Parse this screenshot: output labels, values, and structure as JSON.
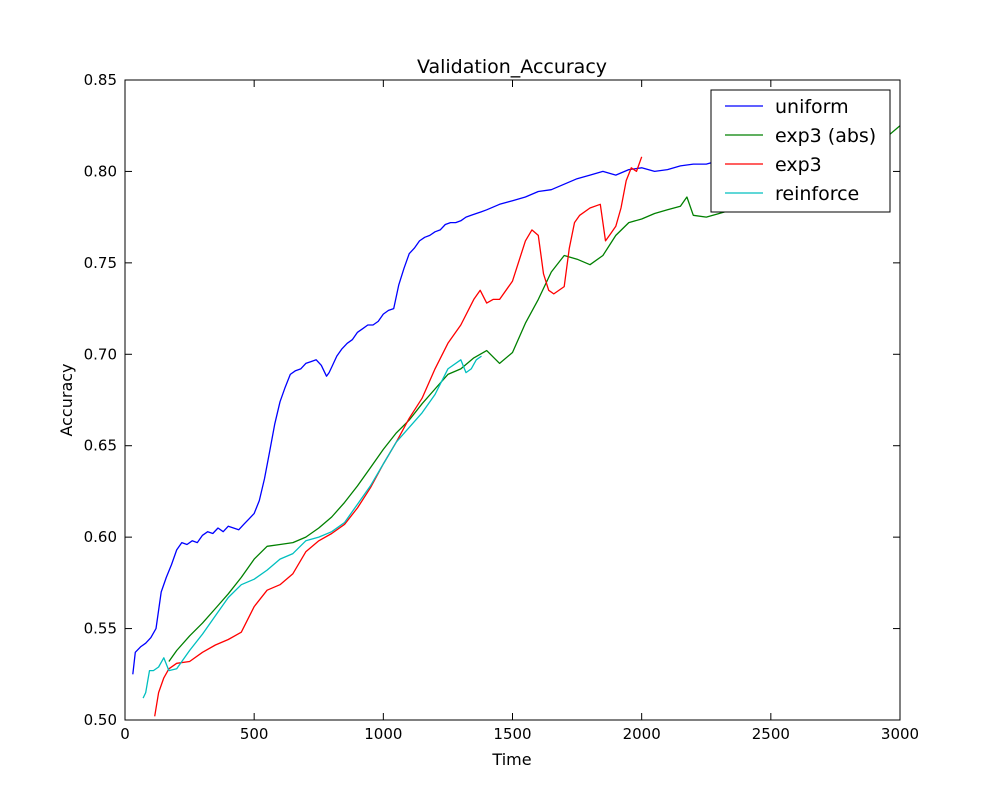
{
  "chart_data": {
    "type": "line",
    "title": "Validation_Accuracy",
    "xlabel": "Time",
    "ylabel": "Accuracy",
    "xlim": [
      0,
      3000
    ],
    "ylim": [
      0.5,
      0.85
    ],
    "xticks": [
      0,
      500,
      1000,
      1500,
      2000,
      2500,
      3000
    ],
    "yticks": [
      0.5,
      0.55,
      0.6,
      0.65,
      0.7,
      0.75,
      0.8,
      0.85
    ],
    "xtick_labels": [
      "0",
      "500",
      "1000",
      "1500",
      "2000",
      "2500",
      "3000"
    ],
    "ytick_labels": [
      "0.50",
      "0.55",
      "0.60",
      "0.65",
      "0.70",
      "0.75",
      "0.80",
      "0.85"
    ],
    "grid": false,
    "legend_position": "top-right",
    "series": [
      {
        "name": "uniform",
        "color": "#0000ff",
        "x": [
          30,
          40,
          60,
          80,
          100,
          120,
          140,
          160,
          180,
          200,
          220,
          240,
          260,
          280,
          300,
          320,
          340,
          360,
          380,
          400,
          420,
          440,
          460,
          480,
          500,
          520,
          540,
          560,
          580,
          600,
          620,
          640,
          660,
          680,
          700,
          720,
          740,
          760,
          780,
          790,
          800,
          820,
          840,
          860,
          880,
          900,
          920,
          940,
          960,
          980,
          1000,
          1020,
          1040,
          1060,
          1080,
          1100,
          1120,
          1140,
          1160,
          1180,
          1200,
          1220,
          1240,
          1260,
          1280,
          1300,
          1320,
          1340,
          1360,
          1380,
          1400,
          1450,
          1500,
          1550,
          1600,
          1650,
          1700,
          1750,
          1800,
          1850,
          1900,
          1950,
          2000,
          2050,
          2100,
          2150,
          2200,
          2250,
          2300
        ],
        "y": [
          0.525,
          0.537,
          0.54,
          0.542,
          0.545,
          0.55,
          0.57,
          0.578,
          0.585,
          0.593,
          0.597,
          0.596,
          0.598,
          0.597,
          0.601,
          0.603,
          0.602,
          0.605,
          0.603,
          0.606,
          0.605,
          0.604,
          0.607,
          0.61,
          0.613,
          0.62,
          0.632,
          0.647,
          0.662,
          0.674,
          0.682,
          0.689,
          0.691,
          0.692,
          0.695,
          0.696,
          0.697,
          0.694,
          0.688,
          0.69,
          0.693,
          0.699,
          0.703,
          0.706,
          0.708,
          0.712,
          0.714,
          0.716,
          0.716,
          0.718,
          0.722,
          0.724,
          0.725,
          0.738,
          0.747,
          0.755,
          0.758,
          0.762,
          0.764,
          0.765,
          0.767,
          0.768,
          0.771,
          0.772,
          0.772,
          0.773,
          0.775,
          0.776,
          0.777,
          0.778,
          0.779,
          0.782,
          0.784,
          0.786,
          0.789,
          0.79,
          0.793,
          0.796,
          0.798,
          0.8,
          0.798,
          0.801,
          0.802,
          0.8,
          0.801,
          0.803,
          0.804,
          0.804,
          0.806
        ]
      },
      {
        "name": "exp3 (abs)",
        "color": "#008000",
        "x": [
          170,
          200,
          250,
          300,
          350,
          400,
          450,
          500,
          550,
          600,
          650,
          700,
          750,
          800,
          850,
          900,
          950,
          1000,
          1050,
          1100,
          1150,
          1200,
          1250,
          1300,
          1350,
          1400,
          1450,
          1500,
          1550,
          1600,
          1650,
          1700,
          1750,
          1800,
          1850,
          1900,
          1950,
          2000,
          2050,
          2100,
          2150,
          2175,
          2200,
          2250,
          2300,
          2350,
          2400,
          2450,
          2500,
          2550,
          2600,
          2650,
          2700,
          2750,
          2800,
          2850,
          2900,
          2950,
          3000
        ],
        "y": [
          0.532,
          0.538,
          0.546,
          0.553,
          0.561,
          0.569,
          0.578,
          0.588,
          0.595,
          0.596,
          0.597,
          0.6,
          0.605,
          0.611,
          0.619,
          0.628,
          0.638,
          0.648,
          0.657,
          0.664,
          0.673,
          0.681,
          0.689,
          0.692,
          0.698,
          0.702,
          0.695,
          0.701,
          0.717,
          0.73,
          0.745,
          0.754,
          0.752,
          0.749,
          0.754,
          0.765,
          0.772,
          0.774,
          0.777,
          0.779,
          0.781,
          0.786,
          0.776,
          0.775,
          0.777,
          0.779,
          0.782,
          0.784,
          0.786,
          0.789,
          0.792,
          0.795,
          0.799,
          0.802,
          0.806,
          0.809,
          0.814,
          0.819,
          0.825
        ]
      },
      {
        "name": "exp3",
        "color": "#ff0000",
        "x": [
          115,
          130,
          150,
          170,
          200,
          250,
          300,
          350,
          400,
          450,
          500,
          550,
          600,
          650,
          700,
          750,
          800,
          850,
          900,
          950,
          1000,
          1050,
          1100,
          1150,
          1200,
          1250,
          1300,
          1350,
          1375,
          1400,
          1425,
          1450,
          1500,
          1550,
          1575,
          1600,
          1620,
          1640,
          1660,
          1700,
          1720,
          1740,
          1760,
          1800,
          1840,
          1860,
          1880,
          1900,
          1920,
          1940,
          1960,
          1980,
          2000
        ],
        "y": [
          0.502,
          0.515,
          0.523,
          0.528,
          0.531,
          0.532,
          0.537,
          0.541,
          0.544,
          0.548,
          0.562,
          0.571,
          0.574,
          0.58,
          0.592,
          0.598,
          0.602,
          0.607,
          0.616,
          0.627,
          0.64,
          0.652,
          0.665,
          0.676,
          0.692,
          0.706,
          0.716,
          0.73,
          0.735,
          0.728,
          0.73,
          0.73,
          0.74,
          0.762,
          0.768,
          0.765,
          0.744,
          0.735,
          0.733,
          0.737,
          0.758,
          0.772,
          0.776,
          0.78,
          0.782,
          0.762,
          0.766,
          0.77,
          0.78,
          0.795,
          0.802,
          0.8,
          0.808
        ]
      },
      {
        "name": "reinforce",
        "color": "#00bfbf",
        "x": [
          70,
          80,
          95,
          110,
          130,
          150,
          170,
          200,
          250,
          300,
          350,
          400,
          450,
          500,
          550,
          600,
          650,
          700,
          750,
          800,
          850,
          900,
          950,
          1000,
          1050,
          1100,
          1150,
          1200,
          1250,
          1300,
          1320,
          1340,
          1360,
          1380
        ],
        "y": [
          0.512,
          0.515,
          0.527,
          0.527,
          0.529,
          0.534,
          0.527,
          0.528,
          0.538,
          0.547,
          0.557,
          0.567,
          0.574,
          0.577,
          0.582,
          0.588,
          0.591,
          0.598,
          0.6,
          0.603,
          0.608,
          0.618,
          0.628,
          0.64,
          0.652,
          0.66,
          0.668,
          0.678,
          0.692,
          0.697,
          0.69,
          0.692,
          0.697,
          0.699
        ]
      }
    ]
  }
}
